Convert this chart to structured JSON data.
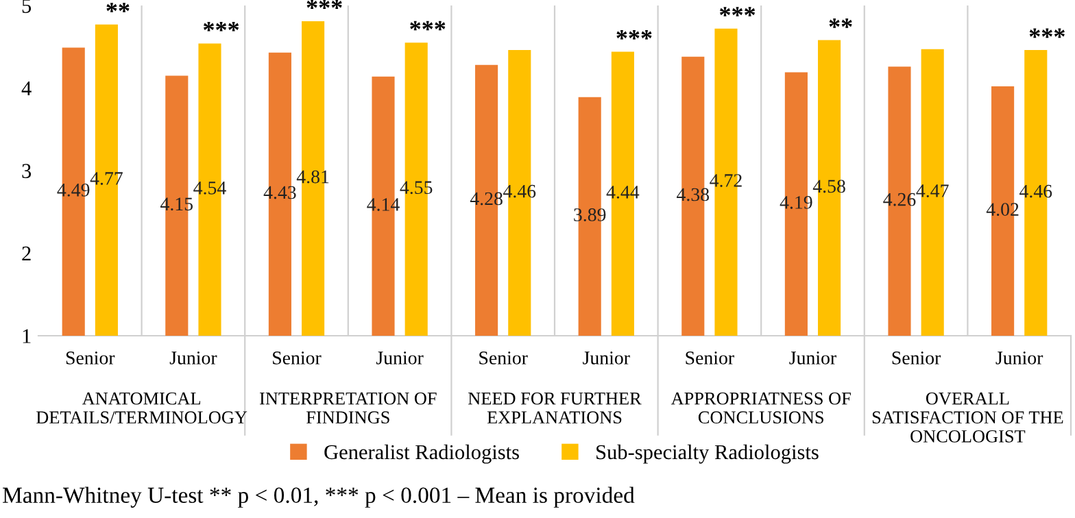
{
  "chart_data": {
    "type": "bar",
    "categories": [
      "Senior",
      "Junior",
      "Senior",
      "Junior",
      "Senior",
      "Junior",
      "Senior",
      "Junior",
      "Senior",
      "Junior"
    ],
    "series": [
      {
        "name": "Generalist Radiologists",
        "color": "#ed7d31",
        "values": [
          4.49,
          4.15,
          4.43,
          4.14,
          4.28,
          3.89,
          4.38,
          4.19,
          4.26,
          4.02
        ]
      },
      {
        "name": "Sub-specialty Radiologists",
        "color": "#ffc000",
        "values": [
          4.77,
          4.54,
          4.81,
          4.55,
          4.46,
          4.44,
          4.72,
          4.58,
          4.47,
          4.46
        ]
      }
    ],
    "ylim": [
      1,
      5
    ],
    "yticks": [
      1,
      2,
      3,
      4,
      5
    ],
    "grid": "x",
    "legend": "bottom",
    "data_labels": true,
    "annotations": [
      "ANATOMICAL DETAILS/TERMINOLOGY",
      "INTERPRETATION OF FINDINGS",
      "NEED FOR FURTHER EXPLANATIONS",
      "APPROPRIATNESS OF CONCLUSIONS",
      "OVERALL SATISFACTION OF THE ONCOLOGIST",
      {
        "text": "**",
        "y": 4.77
      },
      {
        "text": "***",
        "y": 4.54
      },
      {
        "text": "***",
        "y": 4.81
      },
      {
        "text": "***",
        "y": 4.55
      },
      {
        "text": "***",
        "y": 4.44
      },
      {
        "text": "***",
        "y": 4.72
      },
      {
        "text": "**",
        "y": 4.58
      },
      {
        "text": "***",
        "y": 4.46
      },
      "Mann-Whitney U-test ** p < 0.01, *** p < 0.001 – Mean is provided"
    ]
  }
}
